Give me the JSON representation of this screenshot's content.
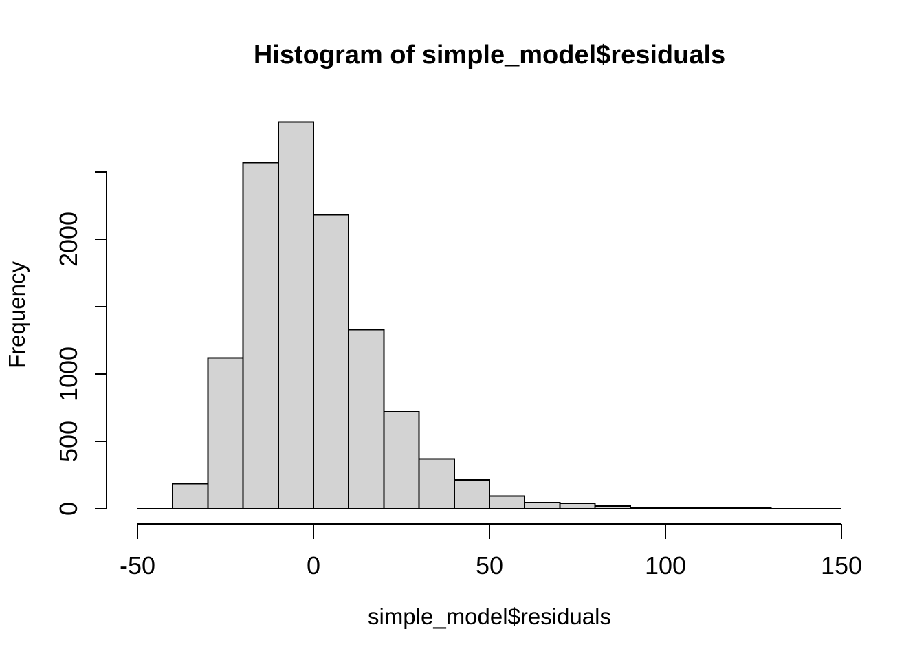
{
  "chart_data": {
    "type": "bar",
    "subtype": "histogram",
    "title": "Histogram of simple_model$residuals",
    "xlabel": "simple_model$residuals",
    "ylabel": "Frequency",
    "breaks": [
      -50,
      -40,
      -30,
      -20,
      -10,
      0,
      10,
      20,
      30,
      40,
      50,
      60,
      70,
      80,
      90,
      100,
      110,
      120,
      130,
      140,
      150
    ],
    "counts": [
      0,
      185,
      1120,
      2570,
      2870,
      2180,
      1330,
      720,
      370,
      215,
      95,
      45,
      40,
      20,
      10,
      8,
      6,
      5,
      0,
      0
    ],
    "xlim": [
      -50,
      150
    ],
    "ylim": [
      0,
      2500
    ],
    "x_ticks": [
      {
        "value": -50,
        "label": "-50"
      },
      {
        "value": 0,
        "label": "0"
      },
      {
        "value": 50,
        "label": "50"
      },
      {
        "value": 100,
        "label": "100"
      },
      {
        "value": 150,
        "label": "150"
      }
    ],
    "y_ticks": [
      {
        "value": 0,
        "label": "0"
      },
      {
        "value": 500,
        "label": "500"
      },
      {
        "value": 1000,
        "label": "1000"
      },
      {
        "value": 1500,
        "label": ""
      },
      {
        "value": 2000,
        "label": "2000"
      },
      {
        "value": 2500,
        "label": ""
      }
    ],
    "bar_fill": "#D3D3D3",
    "bar_border": "#000000",
    "axis_color": "#000000",
    "text_color": "#000000",
    "background": "#FFFFFF",
    "grid": false,
    "legend": "none"
  }
}
